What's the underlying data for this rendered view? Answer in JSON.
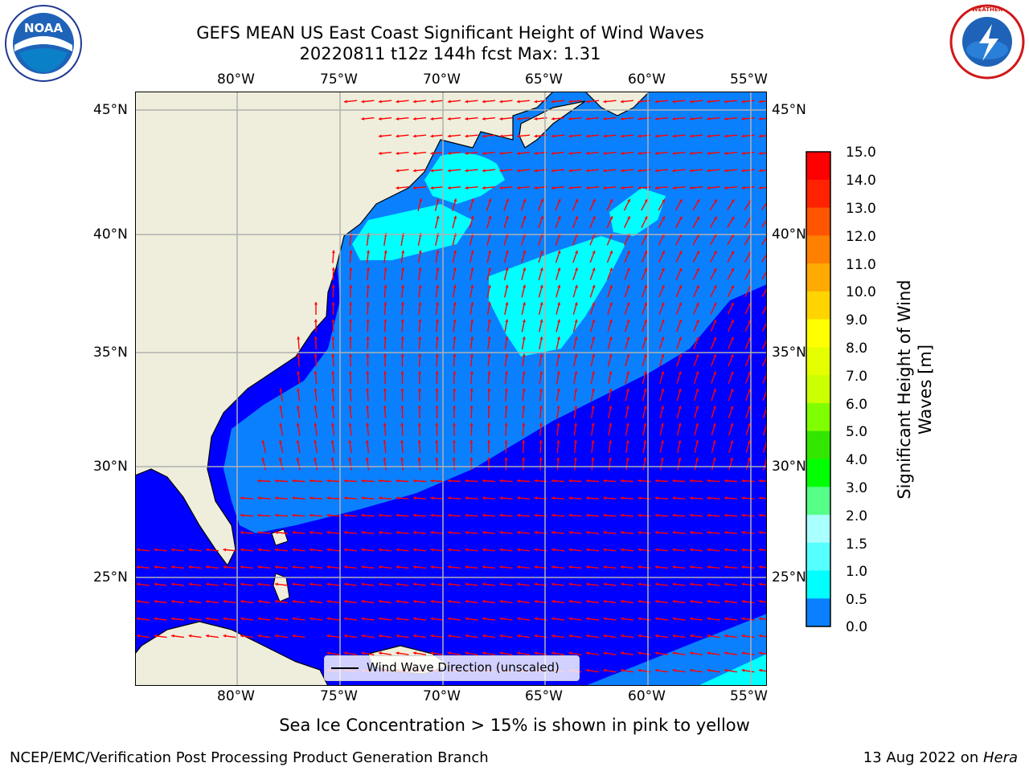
{
  "title": {
    "line1": "GEFS MEAN US East Coast Significant Height of Wind Waves",
    "line2": "20220811 t12z 144h fcst   Max: 1.31"
  },
  "logos": {
    "noaa": "NOAA",
    "nws": "NATIONAL WEATHER SERVICE"
  },
  "map": {
    "top_labels": [
      "80°W",
      "75°W",
      "70°W",
      "65°W",
      "60°W",
      "55°W"
    ],
    "bottom_labels": [
      "80°W",
      "75°W",
      "70°W",
      "65°W",
      "60°W",
      "55°W"
    ],
    "left_labels": [
      "45°N",
      "40°N",
      "35°N",
      "30°N",
      "25°N"
    ],
    "right_labels": [
      "45°N",
      "40°N",
      "35°N",
      "30°N",
      "25°N"
    ],
    "legend_label": "Wind Wave Direction (unscaled)",
    "colors": {
      "land": "#efeedc",
      "wave_0_0.5": "#0000ff",
      "wave_0.5_1.0": "#0a80ff",
      "wave_1.0_1.5": "#00ffff",
      "arrows": "#ff0000",
      "grid": "#b0b0b0"
    }
  },
  "colorbar": {
    "label": "Significant Height of Wind Waves [m]",
    "ticks": [
      "15.0",
      "14.0",
      "13.0",
      "12.0",
      "11.0",
      "10.0",
      "9.0",
      "8.0",
      "7.0",
      "6.0",
      "5.0",
      "4.0",
      "3.0",
      "2.0",
      "1.5",
      "1.0",
      "0.5",
      "0.0"
    ],
    "colors": [
      "#ff0000",
      "#ff2200",
      "#ff5500",
      "#ff8000",
      "#ffaa00",
      "#ffd400",
      "#ffff00",
      "#e6ff00",
      "#ccff00",
      "#80ff00",
      "#33e600",
      "#00ff00",
      "#55ff88",
      "#aaffff",
      "#55ffff",
      "#00ffff",
      "#0a80ff",
      "#0000ff"
    ]
  },
  "note": "Sea Ice Concentration > 15% is shown in pink to yellow",
  "footer": {
    "left": "NCEP/EMC/Verification Post Processing Product Generation Branch",
    "date": "13 Aug 2022 on ",
    "machine": "Hera"
  }
}
